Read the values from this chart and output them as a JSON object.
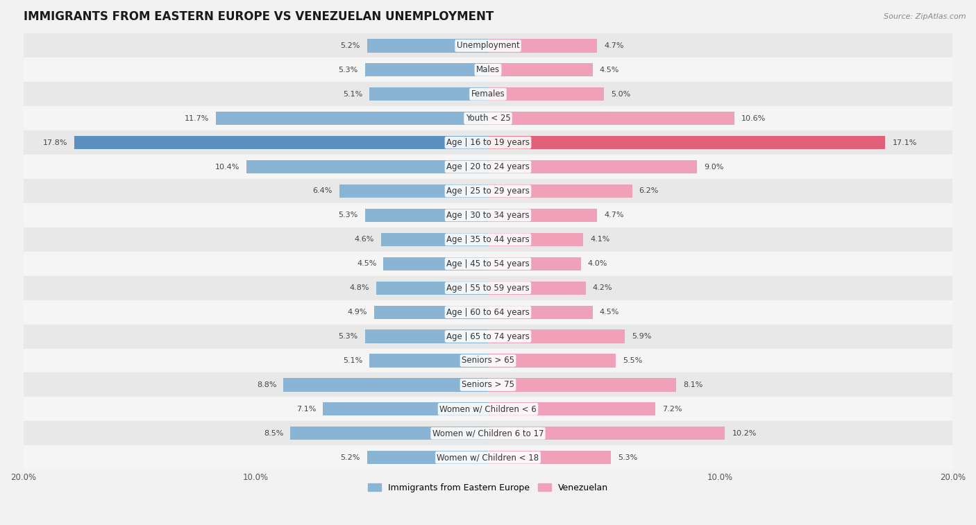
{
  "title": "IMMIGRANTS FROM EASTERN EUROPE VS VENEZUELAN UNEMPLOYMENT",
  "source": "Source: ZipAtlas.com",
  "categories": [
    "Unemployment",
    "Males",
    "Females",
    "Youth < 25",
    "Age | 16 to 19 years",
    "Age | 20 to 24 years",
    "Age | 25 to 29 years",
    "Age | 30 to 34 years",
    "Age | 35 to 44 years",
    "Age | 45 to 54 years",
    "Age | 55 to 59 years",
    "Age | 60 to 64 years",
    "Age | 65 to 74 years",
    "Seniors > 65",
    "Seniors > 75",
    "Women w/ Children < 6",
    "Women w/ Children 6 to 17",
    "Women w/ Children < 18"
  ],
  "left_values": [
    5.2,
    5.3,
    5.1,
    11.7,
    17.8,
    10.4,
    6.4,
    5.3,
    4.6,
    4.5,
    4.8,
    4.9,
    5.3,
    5.1,
    8.8,
    7.1,
    8.5,
    5.2
  ],
  "right_values": [
    4.7,
    4.5,
    5.0,
    10.6,
    17.1,
    9.0,
    6.2,
    4.7,
    4.1,
    4.0,
    4.2,
    4.5,
    5.9,
    5.5,
    8.1,
    7.2,
    10.2,
    5.3
  ],
  "left_color": "#8ab4d4",
  "right_color": "#f0a0b8",
  "left_color_highlight": "#5a8fc0",
  "right_color_highlight": "#e0607a",
  "left_label": "Immigrants from Eastern Europe",
  "right_label": "Venezuelan",
  "xlim": 20.0,
  "background_color": "#f2f2f2",
  "row_color_odd": "#e8e8e8",
  "row_color_even": "#f5f5f5",
  "title_fontsize": 12,
  "label_fontsize": 8.5,
  "value_fontsize": 8,
  "source_fontsize": 8
}
